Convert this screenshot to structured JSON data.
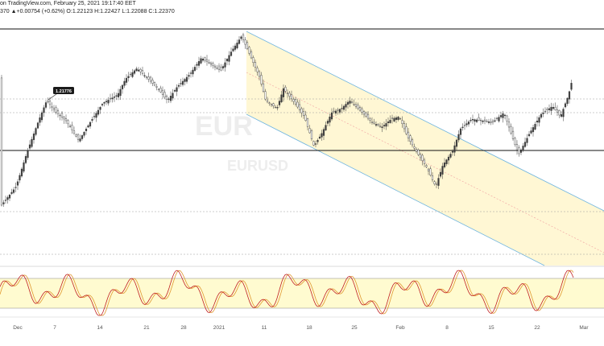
{
  "header": {
    "line1": "on TradingView.com, February 25, 2021 19:17:40 EET",
    "line2": "370  ▲+0.00754 (+0.62%)  O:1.22123  H:1.22427  L:1.22088  C:1.22370"
  },
  "price_label": "1.21776",
  "watermark": {
    "symbol": "EUR",
    "subtitle": "EURUSD"
  },
  "x_axis": {
    "ticks": [
      "Dec",
      "7",
      "14",
      "21",
      "28",
      "2021",
      "11",
      "18",
      "25",
      "Feb",
      "8",
      "15",
      "22",
      "Mar"
    ]
  },
  "colors": {
    "candle": "#3a3a3a",
    "channel_line": "#6fb5e0",
    "channel_fill": "#fff6cc",
    "channel_mid": "#f0a0a0",
    "stoch_k": "#c02020",
    "stoch_d": "#e09830",
    "stoch_band": "#fffbd0"
  }
}
